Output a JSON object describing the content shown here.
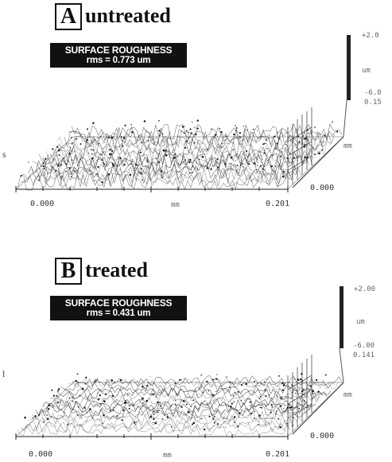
{
  "panel_a": {
    "letter": "A",
    "title": "untreated",
    "roughness_heading": "SURFACE ROUGHNESS",
    "roughness_value": "rms = 0.773 um",
    "z_top": "+2.0",
    "z_unit": "um",
    "z_bottom": "-6.0",
    "depth_max": "0.15",
    "depth_unit": "mm",
    "depth_zero": "0.000",
    "x_start": "0.000",
    "x_unit": "mm",
    "x_end": "0.201"
  },
  "panel_b": {
    "letter": "B",
    "title": "treated",
    "roughness_heading": "SURFACE ROUGHNESS",
    "roughness_value": "rms = 0.431 um",
    "z_top": "+2.00",
    "z_unit": "um",
    "z_bottom": "-6.00",
    "depth_max": "0.141",
    "depth_unit": "mm",
    "depth_zero": "0.000",
    "x_start": "0.000",
    "x_unit": "mm",
    "x_end": "0.201"
  },
  "margin": {
    "left_mark_a": "s",
    "left_mark_b": "l"
  }
}
